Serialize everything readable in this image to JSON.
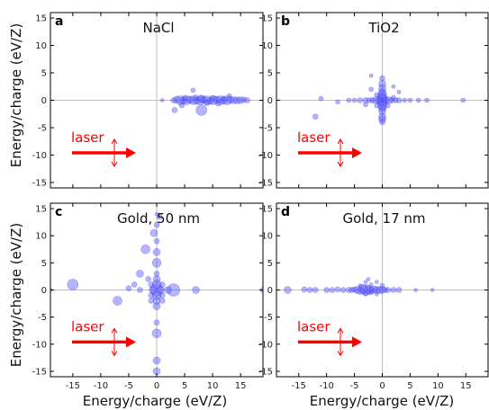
{
  "figure": {
    "x_axis_label": "Energy/charge (eV/Z)",
    "y_axis_label": "Energy/charge (eV/Z)",
    "laser_label": "laser",
    "colors": {
      "points": "#5a5aff",
      "points_edge": "#2020cc",
      "laser": "#ff0000",
      "zero_lines": "#bdbdbd"
    }
  },
  "chart_data": [
    {
      "type": "scatter",
      "letter": "a",
      "title": "NaCl",
      "xlim": [
        -19,
        19
      ],
      "ylim": [
        -16,
        16
      ],
      "x_ticks": [
        -15,
        -10,
        -5,
        0,
        5,
        10,
        15
      ],
      "y_ticks": [
        -15,
        -10,
        -5,
        0,
        5,
        10,
        15
      ],
      "points": [
        [
          1,
          0,
          2
        ],
        [
          3,
          0,
          3
        ],
        [
          3.6,
          0.1,
          4
        ],
        [
          4.2,
          0,
          5
        ],
        [
          4.8,
          -0.1,
          4
        ],
        [
          5.4,
          0,
          5
        ],
        [
          6,
          0.1,
          4
        ],
        [
          6.6,
          0,
          5
        ],
        [
          7.2,
          -0.1,
          4
        ],
        [
          7.8,
          0,
          5
        ],
        [
          8.4,
          0.1,
          4
        ],
        [
          9,
          0,
          5
        ],
        [
          9.6,
          -0.1,
          4
        ],
        [
          10.2,
          0,
          5
        ],
        [
          10.8,
          0.1,
          4
        ],
        [
          11.4,
          0,
          5
        ],
        [
          12,
          -0.1,
          4
        ],
        [
          12.6,
          0,
          5
        ],
        [
          13.2,
          0.1,
          4
        ],
        [
          13.8,
          0,
          4
        ],
        [
          14.4,
          0,
          4
        ],
        [
          15,
          0,
          4
        ],
        [
          15.6,
          0.1,
          3
        ],
        [
          16.2,
          0,
          3
        ],
        [
          5,
          0.4,
          3
        ],
        [
          7,
          0.5,
          3
        ],
        [
          10,
          0.4,
          3
        ],
        [
          12,
          0.3,
          3
        ],
        [
          9,
          -0.5,
          3
        ],
        [
          8,
          0.3,
          4
        ],
        [
          8,
          -1.8,
          6
        ],
        [
          3.2,
          -1.8,
          3
        ],
        [
          6.5,
          1.8,
          2.5
        ],
        [
          4.5,
          -0.9,
          3
        ],
        [
          11,
          -0.6,
          3
        ],
        [
          13,
          0.8,
          2.5
        ]
      ]
    },
    {
      "type": "scatter",
      "letter": "b",
      "title": "TiO2",
      "xlim": [
        -19,
        19
      ],
      "ylim": [
        -16,
        16
      ],
      "x_ticks": [
        -15,
        -10,
        -5,
        0,
        5,
        10,
        15
      ],
      "y_ticks": [
        -15,
        -10,
        -5,
        0,
        5,
        10,
        15
      ],
      "points": [
        [
          0,
          4,
          3
        ],
        [
          0,
          3,
          4
        ],
        [
          0,
          2.2,
          4
        ],
        [
          0,
          1.5,
          4
        ],
        [
          0,
          1,
          5
        ],
        [
          0,
          0.5,
          5
        ],
        [
          0,
          0,
          6
        ],
        [
          0,
          -0.5,
          5
        ],
        [
          0,
          -1,
          5
        ],
        [
          0,
          -1.5,
          4
        ],
        [
          0,
          -2,
          4
        ],
        [
          0,
          -3,
          4
        ],
        [
          0,
          -3.5,
          4
        ],
        [
          0,
          -4,
          3
        ],
        [
          -0.6,
          0,
          4
        ],
        [
          -1.2,
          0,
          4
        ],
        [
          -1.8,
          0,
          3
        ],
        [
          -2.4,
          0,
          3
        ],
        [
          -3,
          0,
          3
        ],
        [
          -4,
          0,
          3
        ],
        [
          -5,
          0,
          2.5
        ],
        [
          -6,
          0,
          2.5
        ],
        [
          -8,
          -0.3,
          2.5
        ],
        [
          0.6,
          0,
          4
        ],
        [
          1.2,
          0,
          4
        ],
        [
          1.8,
          0,
          3
        ],
        [
          2.4,
          0,
          3
        ],
        [
          3,
          0,
          3
        ],
        [
          4,
          0,
          2.5
        ],
        [
          5,
          0,
          2.5
        ],
        [
          6.5,
          0,
          2.5
        ],
        [
          8,
          0,
          2.5
        ],
        [
          -1,
          1,
          2.5
        ],
        [
          -2,
          2,
          2.5
        ],
        [
          1,
          -1,
          2.5
        ],
        [
          -1,
          -1,
          2.5
        ],
        [
          2,
          0.5,
          2.5
        ],
        [
          -3,
          -0.8,
          2.5
        ],
        [
          -2,
          4.5,
          2
        ],
        [
          2,
          2.5,
          2
        ],
        [
          -12,
          -3,
          3
        ],
        [
          -11,
          0.3,
          2.5
        ],
        [
          14.5,
          0,
          2.5
        ],
        [
          3,
          1.5,
          2
        ]
      ]
    },
    {
      "type": "scatter",
      "letter": "c",
      "title": "Gold, 50 nm",
      "xlim": [
        -19,
        19
      ],
      "ylim": [
        -16,
        16
      ],
      "x_ticks": [
        -15,
        -10,
        -5,
        0,
        5,
        10,
        15
      ],
      "y_ticks": [
        -15,
        -10,
        -5,
        0,
        5,
        10,
        15
      ],
      "points": [
        [
          0,
          0,
          7
        ],
        [
          0,
          1,
          5
        ],
        [
          0,
          -1,
          5
        ],
        [
          -0.7,
          0,
          4
        ],
        [
          0.7,
          0,
          4
        ],
        [
          0,
          2,
          4
        ],
        [
          0,
          -2,
          4
        ],
        [
          0,
          3,
          3
        ],
        [
          0,
          -3,
          4
        ],
        [
          -1,
          1,
          3
        ],
        [
          1,
          -1,
          3
        ],
        [
          -1,
          -1,
          3
        ],
        [
          1,
          1,
          3
        ],
        [
          0,
          5,
          5
        ],
        [
          0,
          7,
          4
        ],
        [
          0,
          9,
          3
        ],
        [
          -0.5,
          10.5,
          4
        ],
        [
          0,
          12,
          3
        ],
        [
          0.5,
          13.5,
          3
        ],
        [
          0,
          14,
          2
        ],
        [
          0,
          -6,
          3
        ],
        [
          0,
          -8,
          5
        ],
        [
          0,
          -13,
          4
        ],
        [
          0,
          -15,
          4
        ],
        [
          -2,
          7.5,
          5
        ],
        [
          -3,
          3,
          4
        ],
        [
          -4,
          1,
          3
        ],
        [
          -7,
          -2,
          5
        ],
        [
          -15,
          1,
          6
        ],
        [
          -5,
          0.3,
          3
        ],
        [
          -3,
          0,
          3
        ],
        [
          3,
          0,
          7
        ],
        [
          2,
          0,
          4
        ],
        [
          7,
          0,
          4
        ],
        [
          -1,
          -2,
          3
        ],
        [
          1,
          -2,
          3
        ],
        [
          -1.5,
          2,
          3
        ],
        [
          -19,
          0,
          2
        ],
        [
          19,
          0,
          3
        ]
      ]
    },
    {
      "type": "scatter",
      "letter": "d",
      "title": "Gold, 17 nm",
      "xlim": [
        -19,
        19
      ],
      "ylim": [
        -16,
        16
      ],
      "x_ticks": [
        -15,
        -10,
        -5,
        0,
        5,
        10,
        15
      ],
      "y_ticks": [
        -15,
        -10,
        -5,
        0,
        5,
        10,
        15
      ],
      "points": [
        [
          -3,
          0,
          6
        ],
        [
          -2.5,
          0,
          5
        ],
        [
          -3.5,
          0.2,
          5
        ],
        [
          -2,
          0,
          4
        ],
        [
          -4,
          -0.2,
          4
        ],
        [
          -1.5,
          0.1,
          4
        ],
        [
          -4.5,
          0,
          4
        ],
        [
          -1,
          0,
          4
        ],
        [
          -5,
          0.1,
          3
        ],
        [
          -0.5,
          0,
          4
        ],
        [
          0,
          0,
          4
        ],
        [
          0.5,
          0,
          3
        ],
        [
          1,
          0,
          3
        ],
        [
          2,
          0,
          3
        ],
        [
          3,
          0,
          3
        ],
        [
          -5.5,
          0,
          3
        ],
        [
          -6,
          0,
          3
        ],
        [
          -7,
          0,
          3
        ],
        [
          -8,
          0.1,
          3
        ],
        [
          -9,
          0,
          3
        ],
        [
          -10,
          0,
          3
        ],
        [
          -12,
          0,
          3
        ],
        [
          -13,
          0,
          3
        ],
        [
          -14,
          0.1,
          3
        ],
        [
          -17,
          0,
          4
        ],
        [
          -3,
          1.5,
          2
        ],
        [
          -2,
          1,
          2
        ],
        [
          -4,
          0.8,
          2
        ],
        [
          -1,
          -0.8,
          2
        ],
        [
          0,
          0.8,
          2.5
        ],
        [
          -3,
          -0.7,
          2.5
        ],
        [
          -2,
          -0.5,
          2.5
        ],
        [
          -2.5,
          2,
          2
        ],
        [
          -1,
          1.5,
          2
        ],
        [
          6,
          0,
          2
        ],
        [
          9,
          0,
          2
        ]
      ]
    }
  ]
}
